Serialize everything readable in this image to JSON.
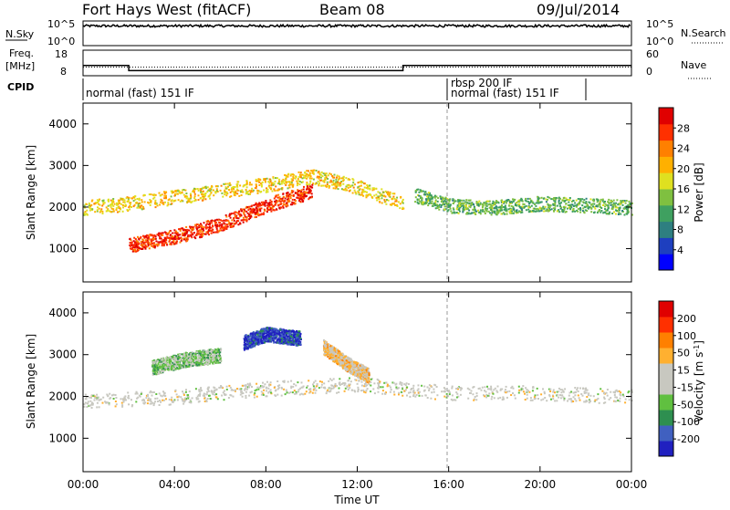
{
  "header": {
    "station_title": "Fort Hays West (fitACF)",
    "beam": "Beam 08",
    "date": "09/Jul/2014"
  },
  "noise_panel": {
    "left_label": "N.Sky",
    "right_label": "N.Search",
    "left_ticks": [
      "10^5",
      "10^0"
    ],
    "right_ticks": [
      "10^5",
      "10^0"
    ]
  },
  "freq_panel": {
    "left_label_1": "Freq.",
    "left_label_2": "[MHz]",
    "right_label": "Nave",
    "left_ticks": [
      "18",
      "8"
    ],
    "right_ticks": [
      "60",
      "0"
    ]
  },
  "cpid_panel": {
    "label": "CPID",
    "modes": [
      "normal (fast) 151 IF",
      "rbsp 200 IF",
      "normal (fast) 151 IF"
    ]
  },
  "power_panel": {
    "ylabel": "Slant Range [km]",
    "colorbar_label": "Power [dB]",
    "colorbar_ticks": [
      "28",
      "24",
      "20",
      "16",
      "12",
      "8",
      "4"
    ]
  },
  "velocity_panel": {
    "ylabel": "Slant Range [km]",
    "colorbar_label": "Velocity [m s",
    "colorbar_label_sup": "-1",
    "colorbar_label_end": "]",
    "colorbar_ticks": [
      "200",
      "100",
      "50",
      "15",
      "-15",
      "-50",
      "-100",
      "-200"
    ]
  },
  "x_axis": {
    "label": "Time UT",
    "ticks": [
      "00:00",
      "04:00",
      "08:00",
      "12:00",
      "16:00",
      "20:00",
      "00:00"
    ]
  },
  "y_axis": {
    "ticks": [
      "4000",
      "3000",
      "2000",
      "1000"
    ]
  },
  "chart_data": [
    {
      "type": "line",
      "title": "N.Sky / N.Search",
      "x_range_hours": [
        0,
        24
      ],
      "y_scale": "log",
      "ylim": [
        1,
        100000
      ]
    },
    {
      "type": "line",
      "title": "Freq. / Nave",
      "x_range_hours": [
        0,
        24
      ],
      "ylim_freq_mhz": [
        8,
        18
      ],
      "freq_steps": [
        {
          "x": 0,
          "y": 12
        },
        {
          "x": 2,
          "y": 10
        },
        {
          "x": 14,
          "y": 12
        },
        {
          "x": 24,
          "y": 12
        }
      ],
      "nave_level": 20
    },
    {
      "type": "heatmap",
      "title": "Power [dB]",
      "x_range_hours": [
        0,
        24
      ],
      "ylim": [
        200,
        4500
      ],
      "zlim": [
        0,
        30
      ],
      "bands": [
        {
          "x": [
            0,
            2,
            4,
            6,
            8,
            10,
            12,
            14
          ],
          "y": [
            2000,
            2100,
            2250,
            2400,
            2550,
            2750,
            2500,
            2100
          ],
          "z": 18
        },
        {
          "x": [
            2,
            4,
            6,
            8,
            10
          ],
          "y": [
            1100,
            1300,
            1600,
            2050,
            2400
          ],
          "z": 26
        },
        {
          "x": [
            14.5,
            16,
            18,
            20,
            22,
            24
          ],
          "y": [
            2300,
            2050,
            2000,
            2100,
            2050,
            2000
          ],
          "z": 12
        }
      ]
    },
    {
      "type": "heatmap",
      "title": "Velocity [m s-1]",
      "x_range_hours": [
        0,
        24
      ],
      "ylim": [
        200,
        4500
      ],
      "zlim": [
        -250,
        250
      ],
      "bands": [
        {
          "x": [
            0,
            4,
            8,
            12,
            16,
            20,
            24
          ],
          "y": [
            1900,
            2000,
            2200,
            2300,
            2100,
            2100,
            2000
          ],
          "z": 0
        },
        {
          "x": [
            3,
            4.5,
            6
          ],
          "y": [
            2700,
            2900,
            3000
          ],
          "z": -60
        },
        {
          "x": [
            7,
            8,
            9.5
          ],
          "y": [
            3300,
            3500,
            3400
          ],
          "z": -200
        },
        {
          "x": [
            10.5,
            11.5,
            12.5
          ],
          "y": [
            3200,
            2800,
            2500
          ],
          "z": 50
        }
      ]
    }
  ]
}
